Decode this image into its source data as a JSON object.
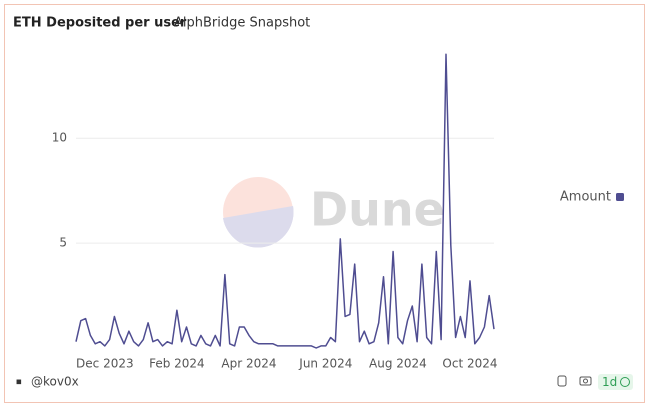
{
  "chart_data": {
    "type": "line",
    "title": "ETH Deposited per user",
    "subtitle": "AlphBridge Snapshot",
    "watermark": "Dune",
    "author": "@kov0x",
    "refresh": "1d",
    "categories": [
      null,
      null,
      null,
      null,
      null,
      null,
      "Dec 2023",
      null,
      null,
      null,
      null,
      null,
      null,
      null,
      null,
      null,
      null,
      null,
      null,
      null,
      null,
      "Feb 2024",
      null,
      null,
      null,
      null,
      null,
      null,
      null,
      null,
      null,
      null,
      null,
      null,
      null,
      null,
      "Apr 2024",
      null,
      null,
      null,
      null,
      null,
      null,
      null,
      null,
      null,
      null,
      null,
      null,
      null,
      null,
      null,
      "Jun 2024",
      null,
      null,
      null,
      null,
      null,
      null,
      null,
      null,
      null,
      null,
      null,
      null,
      null,
      null,
      "Aug 2024",
      null,
      null,
      null,
      null,
      null,
      null,
      null,
      null,
      null,
      null,
      null,
      null,
      null,
      null,
      "Oct 2024",
      null,
      null,
      null,
      null,
      null
    ],
    "series": [
      {
        "name": "Amount",
        "color": "#4f4d91",
        "values": [
          0.3,
          1.3,
          1.4,
          0.6,
          0.2,
          0.3,
          0.1,
          0.4,
          1.5,
          0.7,
          0.2,
          0.8,
          0.3,
          0.1,
          0.4,
          1.2,
          0.3,
          0.4,
          0.1,
          0.3,
          0.2,
          1.8,
          0.3,
          1.0,
          0.2,
          0.1,
          0.6,
          0.2,
          0.1,
          0.6,
          0.1,
          3.5,
          0.2,
          0.1,
          1.0,
          1.0,
          0.6,
          0.3,
          0.2,
          0.2,
          0.2,
          0.2,
          0.1,
          0.1,
          0.1,
          0.1,
          0.1,
          0.1,
          0.1,
          0.1,
          0.0,
          0.1,
          0.1,
          0.5,
          0.3,
          5.2,
          1.5,
          1.6,
          4.0,
          0.3,
          0.8,
          0.2,
          0.3,
          1.2,
          3.4,
          0.2,
          4.6,
          0.5,
          0.2,
          1.3,
          2.0,
          0.3,
          4.0,
          0.5,
          0.2,
          4.6,
          0.4,
          14.0,
          4.9,
          0.5,
          1.5,
          0.5,
          3.2,
          0.2,
          0.5,
          1.0,
          2.5,
          0.9
        ]
      }
    ],
    "ylim": [
      0,
      14.3
    ],
    "yticks": [
      5,
      10
    ],
    "grid": true,
    "legend": "right"
  }
}
